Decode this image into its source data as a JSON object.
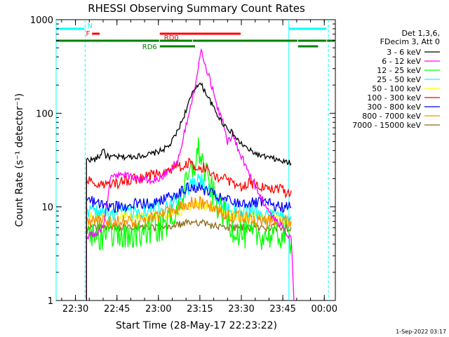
{
  "chart_data": {
    "type": "line",
    "title": "RHESSI Observing Summary Count Rates",
    "xlabel": "Start Time (28-May-17 22:23:22)",
    "ylabel": "Count Rate (s⁻¹ detector⁻¹)",
    "yscale": "log",
    "ylim": [
      1,
      1000
    ],
    "xlim_minutes_after_2223": [
      0,
      101
    ],
    "x_ticks": [
      "22:30",
      "22:45",
      "23:00",
      "23:15",
      "23:30",
      "23:45",
      "00:00"
    ],
    "x_tick_minutes": [
      7,
      22,
      37,
      52,
      67,
      82,
      97
    ],
    "y_ticks": [
      "1",
      "10",
      "100",
      "1000"
    ],
    "y_tick_values": [
      1,
      10,
      100,
      1000
    ],
    "grid": false,
    "legend_position": "right",
    "legend_header": [
      "Det 1,3,6,",
      "FDecim 3, Att 0"
    ],
    "x_unit": "minutes after 22:23",
    "series": [
      {
        "name": "3 - 6 keV",
        "color": "#000000",
        "x": [
          11,
          14,
          16,
          17,
          18,
          20,
          25,
          30,
          35,
          38,
          41,
          44,
          46,
          48,
          50,
          51.5,
          52.5,
          54,
          56,
          58,
          60,
          62,
          64,
          66,
          70,
          74,
          78,
          81,
          83,
          84,
          85
        ],
        "y": [
          32,
          32,
          35,
          43,
          35,
          34,
          34,
          35,
          37,
          40,
          45,
          65,
          90,
          130,
          180,
          210,
          200,
          170,
          130,
          100,
          80,
          70,
          60,
          50,
          40,
          35,
          33,
          31,
          30,
          30,
          29
        ]
      },
      {
        "name": "6 - 12 keV",
        "color": "#ff00ff",
        "x": [
          11,
          14,
          17,
          20,
          25,
          30,
          35,
          38,
          41,
          44,
          46,
          48,
          50,
          51,
          52,
          52.5,
          53,
          54,
          55,
          57,
          59,
          61,
          62,
          64,
          66,
          68,
          70,
          72,
          74,
          76,
          78,
          80,
          82,
          84,
          85,
          86
        ],
        "y": [
          5,
          5,
          6,
          22,
          22,
          20,
          19,
          21,
          24,
          32,
          55,
          100,
          180,
          280,
          400,
          480,
          440,
          330,
          260,
          170,
          100,
          70,
          50,
          60,
          40,
          30,
          22,
          17,
          13,
          10,
          8,
          7,
          6,
          5,
          5,
          1
        ]
      },
      {
        "name": "12 - 25 keV",
        "color": "#00ff00",
        "x": [
          11,
          15,
          20,
          25,
          30,
          35,
          38,
          41,
          44,
          46,
          48,
          50,
          51.5,
          52.5,
          54,
          56,
          58,
          60,
          62,
          64,
          68,
          72,
          76,
          80,
          84,
          85
        ],
        "y": [
          6,
          5,
          5,
          5,
          5,
          6,
          6,
          7,
          10,
          14,
          20,
          28,
          40,
          35,
          22,
          16,
          11,
          9,
          7,
          6,
          5,
          5,
          5,
          5,
          5,
          4
        ]
      },
      {
        "name": "25 - 50 keV",
        "color": "#00ffff",
        "x": [
          11,
          15,
          20,
          25,
          30,
          35,
          38,
          41,
          44,
          46,
          48,
          50,
          52,
          54,
          56,
          58,
          60,
          62,
          64,
          68,
          72,
          76,
          80,
          84,
          85
        ],
        "y": [
          9,
          9,
          8,
          9,
          9,
          10,
          10,
          11,
          12,
          14,
          16,
          18,
          20,
          17,
          14,
          12,
          11,
          10,
          9,
          9,
          9,
          8,
          8,
          8,
          8
        ]
      },
      {
        "name": "50 - 100 keV",
        "color": "#ffff00",
        "x": [
          11,
          20,
          30,
          40,
          44,
          48,
          52,
          56,
          60,
          64,
          70,
          76,
          80,
          85
        ],
        "y": [
          8,
          8,
          8,
          8,
          9,
          10,
          11,
          10,
          9,
          8,
          8,
          8,
          8,
          7
        ]
      },
      {
        "name": "100 - 300 keV",
        "color": "#ff0000",
        "x": [
          11,
          14,
          17,
          20,
          23,
          25,
          28,
          30,
          33,
          35,
          37,
          40,
          42,
          44,
          46,
          48,
          50,
          52,
          54,
          56,
          58,
          60,
          62,
          64,
          66,
          68,
          70,
          72,
          74,
          76,
          78,
          80,
          82,
          84,
          85
        ],
        "y": [
          20,
          18,
          17,
          17,
          18,
          19,
          20,
          20,
          21,
          22,
          23,
          25,
          26,
          27,
          28,
          29,
          28,
          27,
          26,
          24,
          22,
          20,
          19,
          17,
          16,
          17,
          19,
          17,
          16,
          17,
          16,
          16,
          15,
          14,
          15
        ]
      },
      {
        "name": "300 - 800 keV",
        "color": "#0000ff",
        "x": [
          11,
          15,
          20,
          25,
          30,
          35,
          38,
          41,
          44,
          46,
          48,
          50,
          52,
          54,
          56,
          58,
          60,
          62,
          64,
          68,
          72,
          76,
          80,
          84,
          85
        ],
        "y": [
          12,
          11,
          10,
          10,
          11,
          11,
          12,
          13,
          14,
          15,
          16,
          16,
          16,
          15,
          14,
          13,
          12,
          12,
          11,
          11,
          11,
          11,
          10,
          10,
          10
        ]
      },
      {
        "name": "800 - 7000 keV",
        "color": "#ff8c00",
        "x": [
          11,
          15,
          20,
          25,
          30,
          35,
          38,
          41,
          44,
          46,
          48,
          50,
          52,
          54,
          56,
          58,
          60,
          62,
          64,
          68,
          72,
          76,
          80,
          84,
          85
        ],
        "y": [
          7,
          7,
          7,
          7,
          7,
          8,
          8,
          9,
          10,
          10,
          11,
          11,
          11,
          10,
          10,
          9,
          9,
          8,
          8,
          8,
          7,
          7,
          7,
          7,
          7
        ]
      },
      {
        "name": "7000 - 15000 keV",
        "color": "#8b6914",
        "x": [
          11,
          20,
          30,
          40,
          50,
          60,
          70,
          80,
          85
        ],
        "y": [
          6,
          6,
          6,
          6,
          7,
          6,
          6,
          6,
          6
        ]
      }
    ],
    "flag_bars": [
      {
        "label": "N",
        "color": "#00ffff",
        "row": "n",
        "segments": [
          [
            0,
            10.5
          ],
          [
            84.2,
            98
          ]
        ]
      },
      {
        "label": "F",
        "color": "#ff0000",
        "row": "f",
        "segments": [
          [
            13,
            16
          ]
        ]
      },
      {
        "label": "RD0",
        "color": "#ff0000",
        "row": "rd0",
        "segments": [
          [
            37.5,
            67
          ]
        ]
      },
      {
        "label": "",
        "color": "#008000",
        "row": "sun",
        "segments": [
          [
            0,
            37.5
          ],
          [
            37.5,
            49.5
          ],
          [
            49.5,
            87.5
          ],
          [
            87.5,
            98
          ],
          [
            98,
            101
          ]
        ]
      },
      {
        "label": "RD6",
        "color": "#008000",
        "row": "rd6",
        "segments": [
          [
            37.5,
            50.5
          ],
          [
            87.5,
            95
          ]
        ]
      }
    ],
    "vertical_markers": [
      {
        "minute": 0,
        "color": "#00ffff",
        "style": "solid"
      },
      {
        "minute": 10.5,
        "color": "#00ffff",
        "style": "dashed"
      },
      {
        "minute": 84.2,
        "color": "#00ffff",
        "style": "solid"
      },
      {
        "minute": 98.5,
        "color": "#00ffff",
        "style": "dashed"
      }
    ]
  },
  "footer": {
    "timestamp": "1-Sep-2022 03:17"
  }
}
